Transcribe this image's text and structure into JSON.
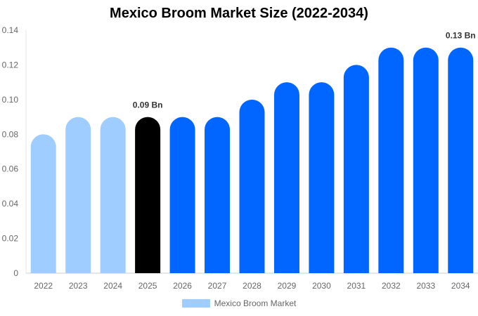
{
  "chart_data": {
    "type": "bar",
    "title": "Mexico Broom Market Size (2022-2034)",
    "categories": [
      "2022",
      "2023",
      "2024",
      "2025",
      "2026",
      "2027",
      "2028",
      "2029",
      "2030",
      "2031",
      "2032",
      "2033",
      "2034"
    ],
    "series": [
      {
        "name": "Mexico Broom Market",
        "values": [
          0.08,
          0.09,
          0.09,
          0.09,
          0.09,
          0.09,
          0.1,
          0.11,
          0.11,
          0.12,
          0.13,
          0.13,
          0.13
        ]
      }
    ],
    "bar_colors": [
      "#a0cdff",
      "#a0cdff",
      "#a0cdff",
      "#000000",
      "#0066ff",
      "#0066ff",
      "#0066ff",
      "#0066ff",
      "#0066ff",
      "#0066ff",
      "#0066ff",
      "#0066ff",
      "#0066ff"
    ],
    "data_labels": [
      {
        "category": "2025",
        "text": "0.09 Bn"
      },
      {
        "category": "2034",
        "text": "0.13 Bn"
      }
    ],
    "y_ticks": [
      "0",
      "0.02",
      "0.04",
      "0.06",
      "0.08",
      "0.10",
      "0.12",
      "0.14"
    ],
    "ylim": [
      0,
      0.14
    ],
    "xlabel": "",
    "ylabel": "",
    "grid": false,
    "legend_position": "bottom"
  },
  "legend": {
    "label": "Mexico Broom Market",
    "color": "#a0cdff"
  }
}
